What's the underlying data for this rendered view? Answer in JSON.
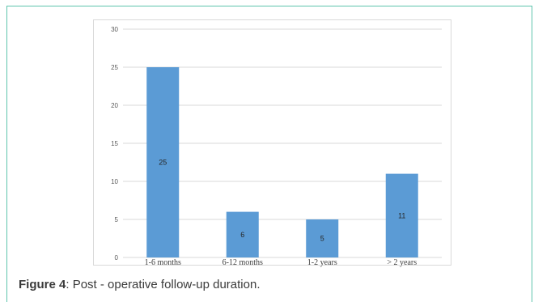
{
  "caption": {
    "label": "Figure 4",
    "text": ": Post - operative follow-up duration."
  },
  "colors": {
    "bar": "#5b9bd5",
    "grid": "#d9d9d9",
    "frame": "#5ec4ad"
  },
  "chart_data": {
    "type": "bar",
    "title": "",
    "xlabel": "",
    "ylabel": "",
    "categories": [
      "1-6 months",
      "6-12 months",
      "1-2 years",
      "> 2 years"
    ],
    "values": [
      25,
      6,
      5,
      11
    ],
    "ylim": [
      0,
      30
    ],
    "yticks": [
      0,
      5,
      10,
      15,
      20,
      25,
      30
    ],
    "grid": true,
    "data_labels": true,
    "legend": "none"
  }
}
